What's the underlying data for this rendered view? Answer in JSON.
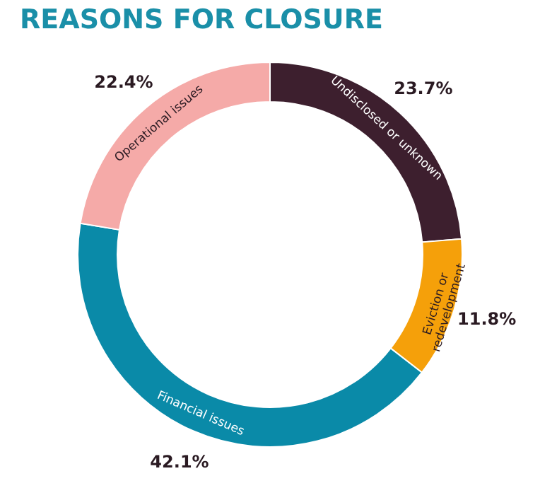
{
  "chart_data": {
    "type": "donut",
    "title": "REASONS FOR CLOSURE",
    "categories": [
      "Undisclosed or unknown",
      "Eviction or redevelopment",
      "Financial issues",
      "Operational issues"
    ],
    "values": [
      23.7,
      11.8,
      42.1,
      22.4
    ],
    "colors": [
      "#3d1f2e",
      "#f5a00a",
      "#0a8aa8",
      "#f5aaa8"
    ],
    "value_labels": [
      "23.7%",
      "11.8%",
      "42.1%",
      "22.4%"
    ],
    "legend": false
  }
}
